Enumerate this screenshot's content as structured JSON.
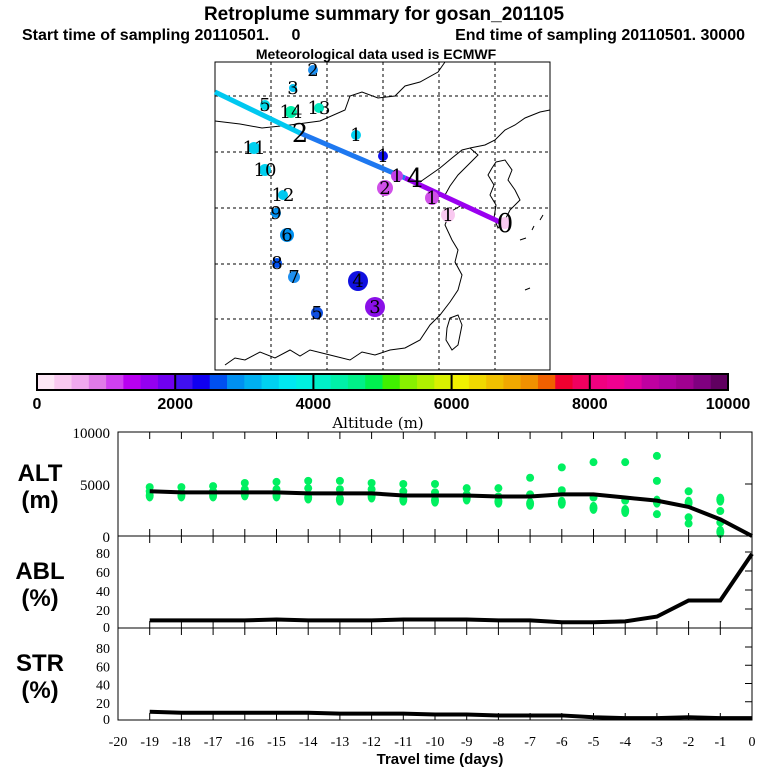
{
  "header": {
    "title": "Retroplume summary for gosan_201105",
    "subtitle_start": "Start time of sampling 20110501.     0",
    "subtitle_end": "End time of sampling 20110501. 30000",
    "met_data": "Meteorological data used is ECMWF"
  },
  "map": {
    "cluster_labels": [
      "2",
      "5",
      "3",
      "14",
      "13",
      "2",
      "1",
      "11",
      "10",
      "1",
      "1",
      "2",
      "1",
      "12",
      "9",
      "1",
      "6",
      "0",
      "8",
      "7",
      "4",
      "3",
      "5",
      "4"
    ],
    "trajectory_colors": [
      "#00c8f0",
      "#1e78f0",
      "#9a00f0"
    ]
  },
  "colorbar": {
    "tick_labels": [
      "0",
      "2000",
      "4000",
      "6000",
      "8000",
      "10000"
    ],
    "label": "Altitude (m)",
    "range": [
      0,
      10000
    ],
    "colors": [
      "#fde8f6",
      "#f9c9f0",
      "#f0a8ee",
      "#e07ae8",
      "#d040f0",
      "#b800f0",
      "#9400f0",
      "#7000f0",
      "#4010f0",
      "#1000f0",
      "#0050f0",
      "#0090f0",
      "#00b0f0",
      "#00d0f0",
      "#00e8f0",
      "#00f0e0",
      "#00f0c8",
      "#00f0a8",
      "#00f088",
      "#00f050",
      "#40f000",
      "#88f000",
      "#b0f000",
      "#d8f000",
      "#f0f000",
      "#f0d800",
      "#f0c000",
      "#f0a800",
      "#f09000",
      "#f06000",
      "#f00030",
      "#f00060",
      "#f00080",
      "#f00090",
      "#e000a0",
      "#c000a0",
      "#b000a0",
      "#a00090",
      "#800080",
      "#600060"
    ]
  },
  "chart_data": [
    {
      "type": "line",
      "panel": "ALT",
      "ylabel": "ALT\n(m)",
      "ylabel_line1": "ALT",
      "ylabel_line2": "(m)",
      "ylim": [
        0,
        10000
      ],
      "yticks": [
        "0",
        "5000",
        "10000"
      ],
      "x": [
        -19,
        -18,
        -17,
        -16,
        -15,
        -14,
        -13,
        -12,
        -11,
        -10,
        -9,
        -8,
        -7,
        -6,
        -5,
        -4,
        -3,
        -2,
        -1,
        0
      ],
      "values": [
        4300,
        4200,
        4200,
        4200,
        4200,
        4100,
        4100,
        4100,
        3900,
        3900,
        3900,
        3800,
        3800,
        4000,
        4000,
        3700,
        3400,
        2800,
        1600,
        0
      ],
      "scatter_color": "#00f060",
      "scatter": [
        [
          -19,
          4700
        ],
        [
          -19,
          4300
        ],
        [
          -19,
          3900
        ],
        [
          -18,
          4700
        ],
        [
          -18,
          4200
        ],
        [
          -18,
          3900
        ],
        [
          -17,
          4800
        ],
        [
          -17,
          4300
        ],
        [
          -17,
          3900
        ],
        [
          -16,
          5100
        ],
        [
          -16,
          4500
        ],
        [
          -16,
          4000
        ],
        [
          -15,
          5200
        ],
        [
          -15,
          4500
        ],
        [
          -15,
          3900
        ],
        [
          -14,
          5300
        ],
        [
          -14,
          4600
        ],
        [
          -14,
          3700
        ],
        [
          -13,
          5300
        ],
        [
          -13,
          4500
        ],
        [
          -13,
          3500
        ],
        [
          -12,
          5100
        ],
        [
          -12,
          4500
        ],
        [
          -12,
          3800
        ],
        [
          -11,
          5000
        ],
        [
          -11,
          4300
        ],
        [
          -11,
          3500
        ],
        [
          -10,
          5000
        ],
        [
          -10,
          4200
        ],
        [
          -10,
          3400
        ],
        [
          -9,
          4600
        ],
        [
          -9,
          4000
        ],
        [
          -9,
          3600
        ],
        [
          -8,
          4600
        ],
        [
          -8,
          3800
        ],
        [
          -8,
          3300
        ],
        [
          -7,
          5600
        ],
        [
          -7,
          4000
        ],
        [
          -7,
          3100
        ],
        [
          -6,
          6600
        ],
        [
          -6,
          4400
        ],
        [
          -6,
          3200
        ],
        [
          -5,
          7100
        ],
        [
          -5,
          3700
        ],
        [
          -5,
          2700
        ],
        [
          -4,
          7100
        ],
        [
          -4,
          3400
        ],
        [
          -4,
          2400
        ],
        [
          -3,
          7700
        ],
        [
          -3,
          5300
        ],
        [
          -3,
          3300
        ],
        [
          -3,
          2100
        ],
        [
          -2,
          4300
        ],
        [
          -2,
          3200
        ],
        [
          -2,
          1800
        ],
        [
          -2,
          1200
        ],
        [
          -1,
          3500
        ],
        [
          -1,
          2400
        ],
        [
          -1,
          1300
        ],
        [
          -1,
          400
        ]
      ]
    },
    {
      "type": "line",
      "panel": "ABL",
      "ylabel_line1": "ABL",
      "ylabel_line2": "(%)",
      "ylim": [
        0,
        100
      ],
      "yticks": [
        "0",
        "20",
        "40",
        "60",
        "80"
      ],
      "x": [
        -19,
        -18,
        -17,
        -16,
        -15,
        -14,
        -13,
        -12,
        -11,
        -10,
        -9,
        -8,
        -7,
        -6,
        -5,
        -4,
        -3,
        -2,
        -1,
        0
      ],
      "values": [
        8,
        8,
        8,
        8,
        9,
        8,
        8,
        8,
        9,
        9,
        9,
        8,
        8,
        6,
        6,
        7,
        12,
        29,
        29,
        78
      ]
    },
    {
      "type": "line",
      "panel": "STR",
      "ylabel_line1": "STR",
      "ylabel_line2": "(%)",
      "ylim": [
        0,
        100
      ],
      "yticks": [
        "0",
        "20",
        "40",
        "60",
        "80"
      ],
      "x": [
        -19,
        -18,
        -17,
        -16,
        -15,
        -14,
        -13,
        -12,
        -11,
        -10,
        -9,
        -8,
        -7,
        -6,
        -5,
        -4,
        -3,
        -2,
        -1,
        0
      ],
      "values": [
        9,
        8,
        8,
        8,
        8,
        8,
        7,
        7,
        7,
        6,
        6,
        5,
        5,
        5,
        3,
        2,
        2,
        3,
        2,
        2
      ]
    }
  ],
  "xaxis": {
    "tick_labels": [
      "-20",
      "-19",
      "-18",
      "-17",
      "-16",
      "-15",
      "-14",
      "-13",
      "-12",
      "-11",
      "-10",
      "-9",
      "-8",
      "-7",
      "-6",
      "-5",
      "-4",
      "-3",
      "-2",
      "-1",
      "0"
    ],
    "xlim": [
      -20,
      0
    ],
    "label": "Travel time (days)"
  }
}
